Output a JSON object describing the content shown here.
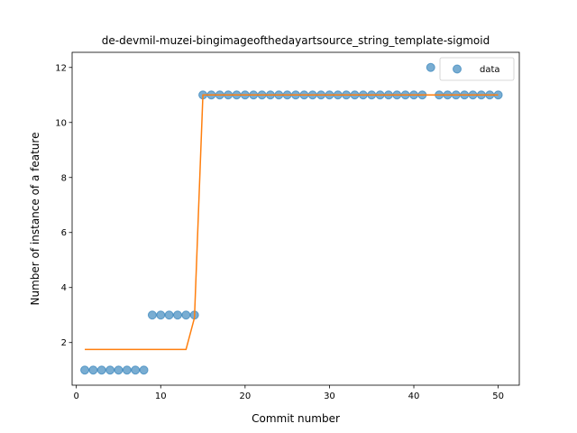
{
  "chart_data": {
    "type": "scatter",
    "title": "de-devmil-muzei-bingimageofthedayartsource_string_template-sigmoid",
    "xlabel": "Commit number",
    "ylabel": "Number of instance of a feature",
    "xlim": [
      -0.5,
      52.5
    ],
    "ylim": [
      0.45,
      12.55
    ],
    "xticks": [
      0,
      10,
      20,
      30,
      40,
      50
    ],
    "yticks": [
      2,
      4,
      6,
      8,
      10,
      12
    ],
    "grid": false,
    "legend_position": "upper right",
    "series": [
      {
        "name": "data",
        "kind": "scatter",
        "color": "#1f77b4",
        "x": [
          1,
          2,
          3,
          4,
          5,
          6,
          7,
          8,
          9,
          10,
          11,
          12,
          13,
          14,
          15,
          16,
          17,
          18,
          19,
          20,
          21,
          22,
          23,
          24,
          25,
          26,
          27,
          28,
          29,
          30,
          31,
          32,
          33,
          34,
          35,
          36,
          37,
          38,
          39,
          40,
          41,
          42,
          43,
          44,
          45,
          46,
          47,
          48,
          49,
          50
        ],
        "y": [
          1,
          1,
          1,
          1,
          1,
          1,
          1,
          1,
          3,
          3,
          3,
          3,
          3,
          3,
          11,
          11,
          11,
          11,
          11,
          11,
          11,
          11,
          11,
          11,
          11,
          11,
          11,
          11,
          11,
          11,
          11,
          11,
          11,
          11,
          11,
          11,
          11,
          11,
          11,
          11,
          11,
          12,
          11,
          11,
          11,
          11,
          11,
          11,
          11,
          11
        ]
      },
      {
        "kind": "line",
        "color": "#ff7f0e",
        "x": [
          1,
          2,
          3,
          4,
          5,
          6,
          7,
          8,
          9,
          10,
          11,
          12,
          13,
          14,
          15,
          16,
          17,
          18,
          19,
          20,
          21,
          22,
          23,
          24,
          25,
          26,
          27,
          28,
          29,
          30,
          31,
          32,
          33,
          34,
          35,
          36,
          37,
          38,
          39,
          40,
          41,
          42,
          43,
          44,
          45,
          46,
          47,
          48,
          49,
          50
        ],
        "y": [
          1.75,
          1.75,
          1.75,
          1.75,
          1.75,
          1.75,
          1.75,
          1.75,
          1.75,
          1.75,
          1.75,
          1.75,
          1.75,
          2.9,
          11,
          11,
          11,
          11,
          11,
          11,
          11,
          11,
          11,
          11,
          11,
          11,
          11,
          11,
          11,
          11,
          11,
          11,
          11,
          11,
          11,
          11,
          11,
          11,
          11,
          11,
          11,
          11,
          11,
          11,
          11,
          11,
          11,
          11,
          11,
          11
        ]
      }
    ]
  }
}
